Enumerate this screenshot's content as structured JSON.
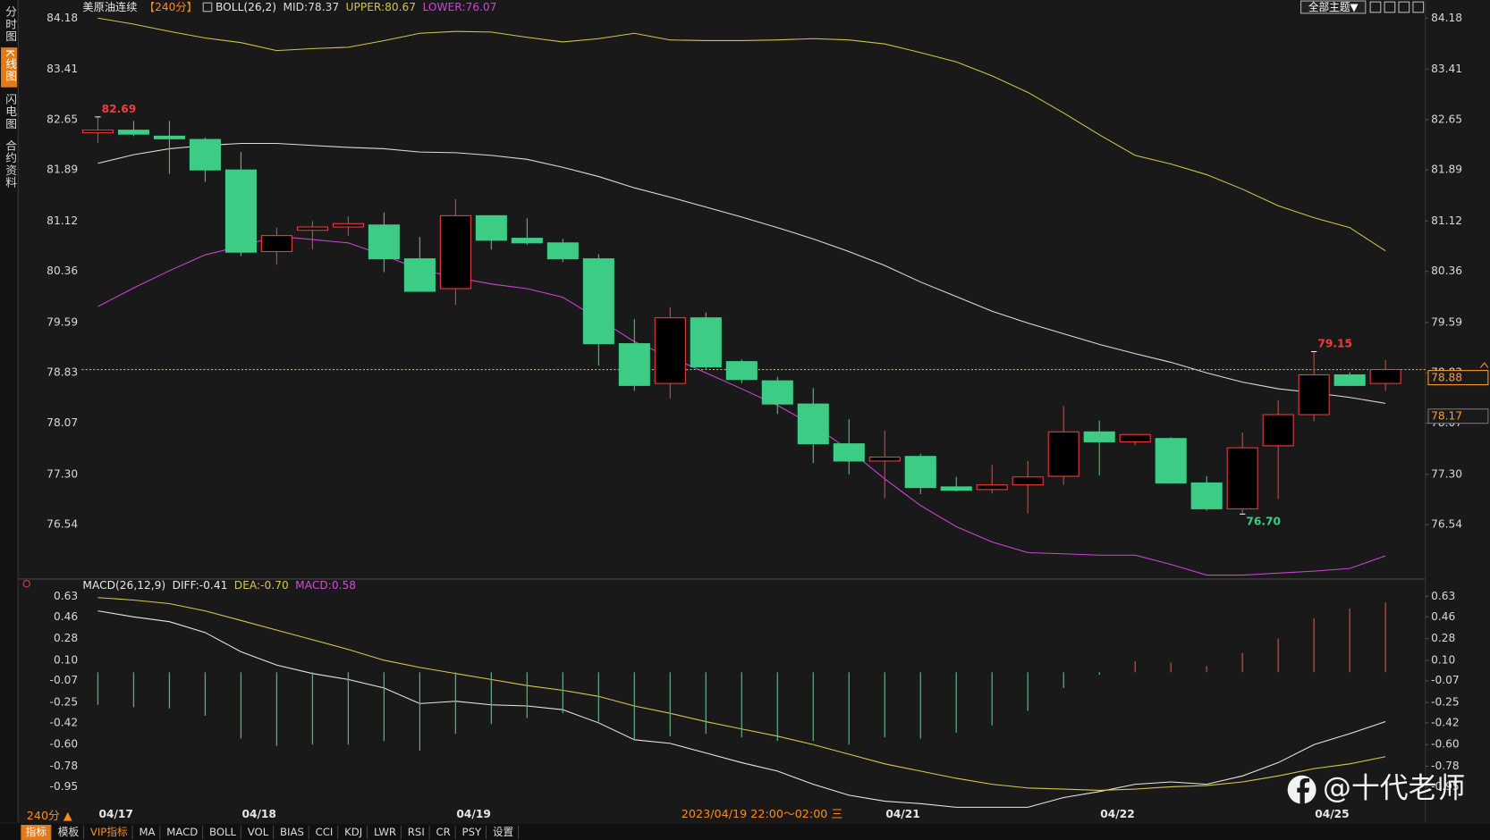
{
  "sidebar": [
    "分时图",
    "K线图",
    "闪电图",
    "合约资料"
  ],
  "theme_button": "全部主题▼",
  "period_selector": "240分 ▲",
  "toolbar": [
    "指标",
    "模板",
    "VIP指标",
    "MA",
    "MACD",
    "BOLL",
    "VOL",
    "BIAS",
    "CCI",
    "KDJ",
    "LWR",
    "RSI",
    "CR",
    "PSY",
    "设置"
  ],
  "crosshair_label": "2023/04/19 22:00～02:00 三",
  "watermark": "@十代老师",
  "chart_data": [
    {
      "type": "candlestick",
      "title": "美原油连续",
      "period": "【240分】",
      "indicator": "BOLL(26,2)",
      "categories": [
        "04/17",
        null,
        null,
        null,
        "04/18",
        null,
        null,
        null,
        null,
        null,
        "04/19",
        null,
        null,
        null,
        null,
        null,
        null,
        null,
        null,
        null,
        null,
        null,
        "04/21",
        null,
        null,
        null,
        null,
        null,
        "04/22",
        null,
        null,
        null,
        null,
        null,
        "04/25",
        null,
        null
      ],
      "open": [
        82.45,
        82.49,
        82.4,
        82.35,
        81.89,
        80.66,
        80.98,
        81.03,
        81.06,
        80.55,
        80.1,
        81.2,
        80.86,
        80.79,
        80.55,
        79.27,
        78.67,
        79.66,
        79.0,
        78.71,
        78.36,
        77.76,
        77.5,
        77.57,
        77.11,
        77.07,
        77.14,
        77.27,
        77.94,
        77.79,
        77.84,
        77.17,
        76.78,
        77.73,
        78.2,
        78.8,
        78.67
      ],
      "high": [
        82.69,
        82.63,
        82.63,
        82.38,
        82.16,
        81.02,
        81.12,
        81.19,
        81.25,
        80.88,
        81.45,
        81.2,
        81.16,
        80.85,
        80.62,
        79.64,
        79.82,
        79.74,
        79.03,
        78.77,
        78.6,
        78.13,
        77.96,
        77.61,
        77.26,
        77.44,
        77.5,
        78.33,
        78.11,
        77.91,
        77.86,
        77.27,
        77.93,
        78.42,
        79.15,
        78.84,
        79.02
      ],
      "low": [
        82.3,
        82.4,
        81.83,
        81.71,
        80.59,
        80.46,
        80.69,
        80.9,
        80.35,
        80.06,
        79.86,
        80.69,
        80.76,
        80.5,
        78.94,
        78.56,
        78.44,
        78.89,
        78.67,
        78.21,
        77.47,
        77.3,
        76.94,
        77.0,
        77.04,
        77.01,
        76.71,
        77.14,
        77.28,
        77.74,
        77.16,
        76.75,
        76.7,
        76.93,
        78.1,
        78.63,
        78.56
      ],
      "close": [
        82.49,
        82.43,
        82.36,
        81.89,
        80.65,
        80.9,
        81.03,
        81.08,
        80.55,
        80.06,
        81.2,
        80.83,
        80.79,
        80.55,
        79.27,
        78.64,
        79.66,
        78.92,
        78.73,
        78.36,
        77.76,
        77.5,
        77.56,
        77.1,
        77.06,
        77.14,
        77.26,
        77.94,
        77.79,
        77.9,
        77.17,
        76.78,
        77.7,
        78.2,
        78.8,
        78.64,
        78.88
      ],
      "up_color": "#f03c3c",
      "down_color": "#3ccc86",
      "series": [
        {
          "name": "MID:78.37",
          "color": "#dcdcdc",
          "values": [
            81.99,
            82.12,
            82.21,
            82.26,
            82.29,
            82.29,
            82.26,
            82.23,
            82.21,
            82.16,
            82.15,
            82.11,
            82.05,
            81.93,
            81.79,
            81.62,
            81.48,
            81.33,
            81.18,
            81.02,
            80.85,
            80.66,
            80.45,
            80.2,
            79.98,
            79.76,
            79.58,
            79.42,
            79.26,
            79.12,
            78.99,
            78.83,
            78.69,
            78.59,
            78.53,
            78.46,
            78.37
          ]
        },
        {
          "name": "UPPER:80.67",
          "color": "#cfc44a",
          "values": [
            84.18,
            84.09,
            83.98,
            83.88,
            83.81,
            83.69,
            83.72,
            83.74,
            83.84,
            83.95,
            83.98,
            83.97,
            83.89,
            83.82,
            83.87,
            83.95,
            83.85,
            83.84,
            83.84,
            83.85,
            83.87,
            83.85,
            83.79,
            83.66,
            83.52,
            83.31,
            83.06,
            82.75,
            82.42,
            82.11,
            81.98,
            81.82,
            81.6,
            81.35,
            81.17,
            81.02,
            80.67
          ]
        },
        {
          "name": "LOWER:76.07",
          "color": "#cc44d4",
          "values": [
            79.83,
            80.11,
            80.37,
            80.61,
            80.74,
            80.89,
            80.84,
            80.79,
            80.6,
            80.39,
            80.27,
            80.17,
            80.1,
            79.97,
            79.64,
            79.3,
            79.07,
            78.83,
            78.59,
            78.34,
            78.04,
            77.67,
            77.23,
            76.83,
            76.51,
            76.28,
            76.12,
            76.1,
            76.08,
            76.08,
            75.94,
            75.78,
            75.78,
            75.81,
            75.84,
            75.88,
            76.07
          ]
        }
      ],
      "annotations": [
        82.69,
        79.15,
        {
          "value": 76.7,
          "label": "76.70"
        }
      ],
      "last_price": 78.88,
      "last_price_color": "#ff9a2e",
      "price_marker": 78.17,
      "ylim": [
        75.75,
        84.31
      ],
      "yticks": [
        84.18,
        83.41,
        82.65,
        81.89,
        81.12,
        80.36,
        79.59,
        78.83,
        78.07,
        {
          "value": 77.3,
          "label": "77.30"
        },
        76.54
      ]
    },
    {
      "type": "macd",
      "indicator": "MACD(26,12,9)",
      "series": [
        {
          "name": "DIFF:-0.41",
          "color": "#e8e8e8",
          "values": [
            0.51,
            0.46,
            0.42,
            0.33,
            0.17,
            0.06,
            -0.01,
            -0.06,
            -0.13,
            -0.26,
            -0.24,
            -0.27,
            -0.28,
            -0.31,
            -0.42,
            -0.56,
            -0.59,
            -0.67,
            -0.75,
            -0.82,
            -0.93,
            -1.02,
            -1.07,
            -1.09,
            -1.12,
            -1.12,
            -1.12,
            -1.04,
            -0.99,
            -0.93,
            -0.91,
            -0.93,
            -0.86,
            -0.75,
            -0.6,
            -0.51,
            -0.41
          ]
        },
        {
          "name": "DEA:-0.70",
          "color": "#d6c84e",
          "values": [
            0.62,
            0.6,
            0.57,
            0.51,
            0.43,
            0.35,
            0.27,
            0.19,
            0.1,
            0.04,
            -0.01,
            -0.06,
            -0.11,
            -0.15,
            -0.2,
            -0.28,
            -0.34,
            -0.41,
            -0.47,
            -0.53,
            -0.6,
            -0.68,
            -0.76,
            -0.82,
            -0.88,
            -0.93,
            -0.96,
            -0.97,
            -0.98,
            -0.97,
            -0.95,
            -0.94,
            -0.91,
            -0.86,
            -0.8,
            -0.76,
            -0.7
          ]
        },
        {
          "name": "MACD:0.58",
          "color": "#d04cd6",
          "kind": "bar",
          "up_color": "#e03c3c",
          "down_color": "#2fbf80",
          "values": [
            -0.27,
            -0.29,
            -0.3,
            -0.36,
            -0.55,
            -0.61,
            -0.6,
            -0.6,
            -0.57,
            -0.65,
            -0.51,
            -0.43,
            -0.38,
            -0.34,
            -0.41,
            -0.56,
            -0.53,
            -0.51,
            -0.54,
            -0.57,
            -0.57,
            -0.6,
            -0.54,
            -0.55,
            -0.5,
            -0.44,
            -0.32,
            -0.13,
            -0.02,
            0.09,
            0.08,
            0.05,
            0.16,
            0.28,
            0.45,
            0.53,
            0.58
          ]
        }
      ],
      "ylim": [
        -1.14,
        0.68
      ],
      "yticks": [
        0.63,
        0.46,
        0.28,
        {
          "value": 0.1,
          "label": "0.10"
        },
        -0.07,
        -0.25,
        -0.42,
        {
          "value": -0.6,
          "label": "-0.60"
        },
        -0.78,
        -0.95
      ]
    }
  ]
}
